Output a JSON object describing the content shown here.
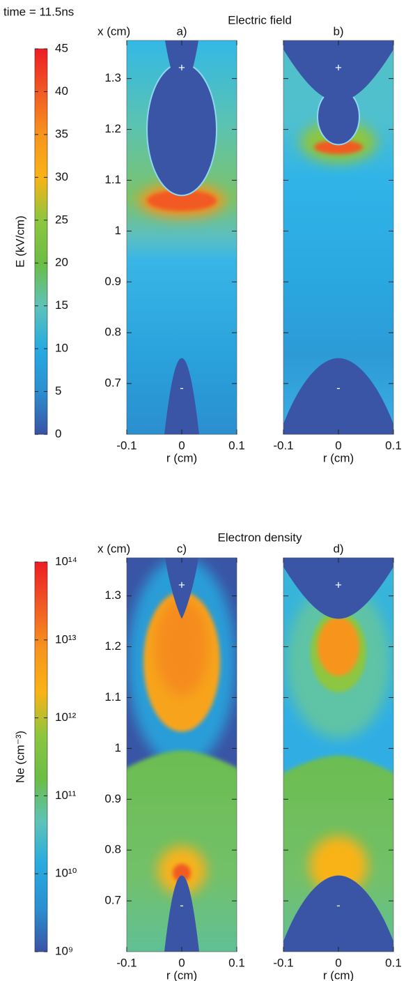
{
  "annotation": "time = 11.5ns",
  "electrode_labels": [
    "+",
    "-"
  ],
  "chart_data": [
    {
      "type": "heatmap",
      "title": "Electric field",
      "panel_labels": [
        "a)",
        "b)"
      ],
      "y_label": "x (cm)",
      "x_label": "r (cm)",
      "xlim": [
        -0.1,
        0.1
      ],
      "xticks": [
        -0.1,
        0,
        0.1
      ],
      "ylim": [
        0.6,
        1.375
      ],
      "yticks": [
        0.7,
        0.8,
        0.9,
        1,
        1.1,
        1.2,
        1.3
      ],
      "colorbar": {
        "label": "E (kV/cm)",
        "lim": [
          0,
          45
        ],
        "ticks": [
          0,
          5,
          10,
          15,
          20,
          25,
          30,
          35,
          40,
          45
        ],
        "colors": [
          "#3953a4",
          "#2b8fd0",
          "#27aae1",
          "#5ec3b8",
          "#6cbd45",
          "#8dc63f",
          "#f9b316",
          "#f7941d",
          "#f15a24",
          "#ed1c24"
        ]
      }
    },
    {
      "type": "heatmap",
      "title": "Electron density",
      "panel_labels": [
        "c)",
        "d)"
      ],
      "y_label": "x (cm)",
      "x_label": "r (cm)",
      "xlim": [
        -0.1,
        0.1
      ],
      "xticks": [
        -0.1,
        0,
        0.1
      ],
      "ylim": [
        0.6,
        1.375
      ],
      "yticks": [
        0.7,
        0.8,
        0.9,
        1,
        1.1,
        1.2,
        1.3
      ],
      "colorbar": {
        "label": "Ne (cm⁻³)",
        "log": true,
        "lim": [
          1000000000,
          100000000000000
        ],
        "ticks": [
          {
            "value": 1000000000,
            "label": "10⁹"
          },
          {
            "value": 10000000000,
            "label": "10¹⁰"
          },
          {
            "value": 100000000000,
            "label": "10¹¹"
          },
          {
            "value": 1000000000000,
            "label": "10¹²"
          },
          {
            "value": 10000000000000,
            "label": "10¹³"
          },
          {
            "value": 100000000000000,
            "label": "10¹⁴"
          }
        ],
        "colors": [
          "#3953a4",
          "#2b8fd0",
          "#27aae1",
          "#5ec3b8",
          "#6cbd45",
          "#8dc63f",
          "#f9b316",
          "#f7941d",
          "#f15a24",
          "#ed1c24"
        ]
      }
    }
  ]
}
